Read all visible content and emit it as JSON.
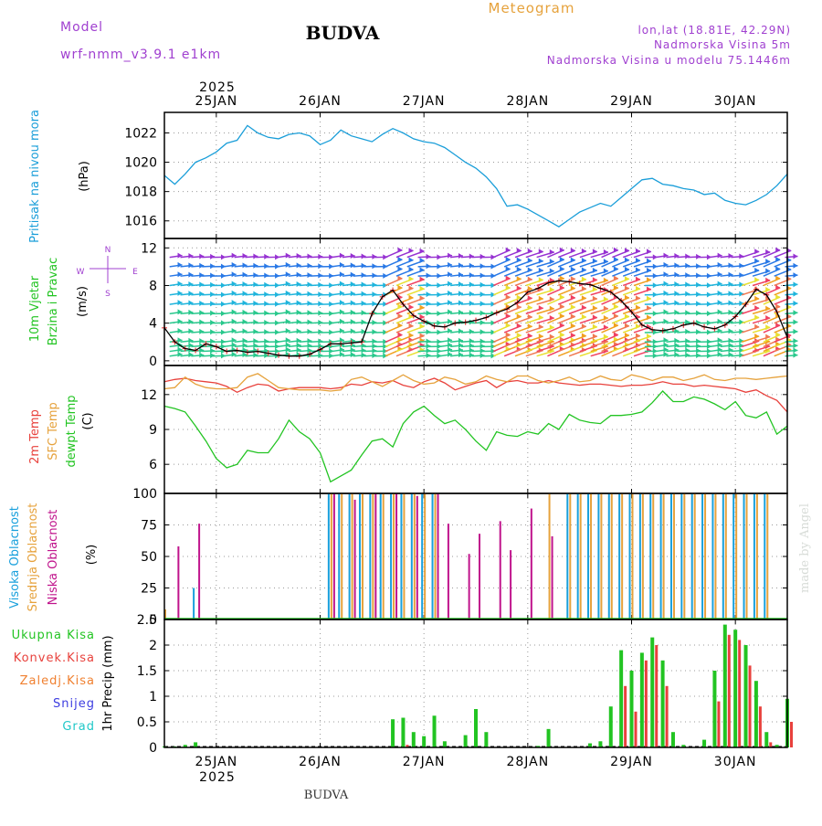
{
  "header": {
    "model_label": "Model",
    "model_name": "wrf-nmm_v3.9.1  e1km",
    "station": "BUDVA",
    "product": "Meteogram",
    "lonlat": "lon,lat (18.81E, 42.29N)",
    "elevation": "Nadmorska Visina 5m",
    "model_elevation": "Nadmorska Visina u modelu 75.1446m",
    "year_top": "2025",
    "year_bottom": "2025",
    "footer_station": "BUDVA",
    "credit": "made by Angel"
  },
  "colors": {
    "pressure": "#1a9ed9",
    "wind_speed": "#000000",
    "wind_markers": "#e83a3a",
    "t2m": "#e8413c",
    "tsfc": "#e6a23c",
    "dewpt": "#22c422",
    "high_cloud": "#19a0dc",
    "mid_cloud": "#e6a23c",
    "low_cloud": "#c0148c",
    "total_precip": "#22c422",
    "conv_precip": "#e8413c",
    "frozen_precip": "#f08030",
    "snow": "#3c3ce0",
    "hail": "#20c8c8",
    "model_purple": "#a040d0",
    "title_black": "#000000"
  },
  "chart_data": [
    {
      "type": "line",
      "id": "pressure",
      "ylabel_lines": [
        "Pritisak na nivou mora",
        "(hPa)"
      ],
      "ylim": [
        1014.8,
        1023.4
      ],
      "yticks": [
        1016,
        1018,
        1020,
        1022
      ],
      "grid": true,
      "x_days": [
        0,
        0.1,
        0.2,
        0.3,
        0.4,
        0.5,
        0.6,
        0.7,
        0.8,
        0.9,
        1.0,
        1.1,
        1.2,
        1.3,
        1.4,
        1.5,
        1.6,
        1.7,
        1.8,
        1.9,
        2.0,
        2.1,
        2.2,
        2.3,
        2.4,
        2.5,
        2.6,
        2.7,
        2.8,
        2.9,
        3.0,
        3.1,
        3.2,
        3.3,
        3.4,
        3.5,
        3.6,
        3.7,
        3.8,
        3.9,
        4.0,
        4.1,
        4.2,
        4.3,
        4.4,
        4.5,
        4.6,
        4.7,
        4.8,
        4.9,
        5.0,
        5.1,
        5.2,
        5.3,
        5.4,
        5.5,
        5.6,
        5.7,
        5.8,
        5.9,
        6.0
      ],
      "series": [
        {
          "key": "pressure",
          "values": [
            1019.1,
            1018.5,
            1019.2,
            1020.0,
            1020.3,
            1020.7,
            1021.3,
            1021.5,
            1022.5,
            1022.0,
            1021.7,
            1021.6,
            1021.9,
            1022.0,
            1021.8,
            1021.2,
            1021.5,
            1022.2,
            1021.8,
            1021.6,
            1021.4,
            1021.9,
            1022.3,
            1022.0,
            1021.6,
            1021.4,
            1021.3,
            1021.0,
            1020.5,
            1020.0,
            1019.6,
            1019.0,
            1018.2,
            1017.0,
            1017.1,
            1016.8,
            1016.4,
            1016.0,
            1015.6,
            1016.1,
            1016.6,
            1016.9,
            1017.2,
            1017.0,
            1017.6,
            1018.2,
            1018.8,
            1018.9,
            1018.5,
            1018.4,
            1018.2,
            1018.1,
            1017.8,
            1017.9,
            1017.4,
            1017.2,
            1017.1,
            1017.4,
            1017.8,
            1018.4,
            1019.2
          ]
        }
      ]
    },
    {
      "type": "line",
      "id": "wind",
      "ylabel_lines": [
        "10m Vjetar",
        "Brzina i Pravac",
        "(m/s)"
      ],
      "direction_legend": "N, E, S, W",
      "ylim": [
        -0.5,
        13
      ],
      "yticks": [
        0,
        4,
        8,
        12
      ],
      "grid": true,
      "x_days": [
        0,
        0.1,
        0.2,
        0.3,
        0.4,
        0.5,
        0.6,
        0.7,
        0.8,
        0.9,
        1.0,
        1.1,
        1.2,
        1.3,
        1.4,
        1.5,
        1.6,
        1.7,
        1.8,
        1.9,
        2.0,
        2.1,
        2.2,
        2.3,
        2.4,
        2.5,
        2.6,
        2.7,
        2.8,
        2.9,
        3.0,
        3.1,
        3.2,
        3.3,
        3.4,
        3.5,
        3.6,
        3.7,
        3.8,
        3.9,
        4.0,
        4.1,
        4.2,
        4.3,
        4.4,
        4.5,
        4.6,
        4.7,
        4.8,
        4.9,
        5.0,
        5.1,
        5.2,
        5.3,
        5.4,
        5.5,
        5.6,
        5.7,
        5.8,
        5.9,
        6.0
      ],
      "series": [
        {
          "key": "wind_speed",
          "values": [
            3.5,
            2.0,
            1.3,
            1.1,
            1.8,
            1.5,
            1.0,
            1.1,
            0.9,
            1.0,
            0.8,
            0.6,
            0.5,
            0.5,
            0.7,
            1.2,
            1.8,
            1.8,
            1.9,
            2.0,
            5.0,
            6.8,
            7.5,
            6.0,
            4.8,
            4.2,
            3.7,
            3.6,
            4.0,
            4.1,
            4.3,
            4.6,
            5.1,
            5.5,
            6.2,
            7.3,
            7.7,
            8.3,
            8.5,
            8.4,
            8.2,
            8.1,
            7.7,
            7.3,
            6.4,
            5.2,
            3.8,
            3.3,
            3.2,
            3.4,
            3.8,
            4.0,
            3.6,
            3.4,
            3.8,
            4.7,
            6.0,
            7.6,
            7.0,
            5.2,
            2.5
          ]
        }
      ],
      "arrow_rows": [
        0.5,
        1.0,
        1.5,
        2.0,
        3.0,
        4.0,
        5.0,
        6.0,
        7.0,
        8.0,
        9.0,
        10.0,
        11.0
      ]
    },
    {
      "type": "line",
      "id": "temperature",
      "ylabel_lines": [
        "2m Temp",
        "SFC Temp",
        "dewpt Temp",
        "(C)"
      ],
      "ylim": [
        3.5,
        14.5
      ],
      "yticks": [
        6,
        9,
        12
      ],
      "grid": true,
      "x_days": [
        0,
        0.1,
        0.2,
        0.3,
        0.4,
        0.5,
        0.6,
        0.7,
        0.8,
        0.9,
        1.0,
        1.1,
        1.2,
        1.3,
        1.4,
        1.5,
        1.6,
        1.7,
        1.8,
        1.9,
        2.0,
        2.1,
        2.2,
        2.3,
        2.4,
        2.5,
        2.6,
        2.7,
        2.8,
        2.9,
        3.0,
        3.1,
        3.2,
        3.3,
        3.4,
        3.5,
        3.6,
        3.7,
        3.8,
        3.9,
        4.0,
        4.1,
        4.2,
        4.3,
        4.4,
        4.5,
        4.6,
        4.7,
        4.8,
        4.9,
        5.0,
        5.1,
        5.2,
        5.3,
        5.4,
        5.5,
        5.6,
        5.7,
        5.8,
        5.9,
        6.0
      ],
      "series": [
        {
          "key": "t2m",
          "values": [
            13.1,
            13.3,
            13.4,
            13.2,
            13.1,
            13.0,
            12.7,
            12.2,
            12.6,
            12.9,
            12.8,
            12.3,
            12.5,
            12.6,
            12.6,
            12.6,
            12.5,
            12.6,
            12.9,
            12.8,
            13.1,
            13.0,
            13.2,
            12.8,
            12.6,
            13.1,
            13.4,
            13.0,
            12.4,
            12.7,
            13.0,
            13.2,
            12.6,
            13.1,
            13.2,
            13.0,
            13.0,
            13.2,
            13.0,
            12.9,
            12.8,
            12.9,
            12.9,
            12.8,
            12.7,
            12.8,
            12.8,
            12.9,
            13.1,
            12.9,
            12.9,
            12.7,
            12.8,
            12.7,
            12.6,
            12.5,
            12.2,
            12.4,
            11.9,
            11.5,
            10.5
          ]
        },
        {
          "key": "tsfc",
          "values": [
            12.5,
            12.6,
            13.5,
            12.9,
            12.6,
            12.5,
            12.5,
            12.6,
            13.5,
            13.8,
            13.2,
            12.6,
            12.5,
            12.4,
            12.4,
            12.4,
            12.3,
            12.4,
            13.3,
            13.5,
            13.1,
            12.7,
            13.2,
            13.7,
            13.2,
            12.9,
            13.0,
            13.5,
            13.3,
            12.9,
            13.1,
            13.6,
            13.3,
            13.1,
            13.6,
            13.6,
            13.2,
            13.0,
            13.2,
            13.5,
            13.1,
            13.2,
            13.6,
            13.3,
            13.2,
            13.7,
            13.5,
            13.2,
            13.5,
            13.5,
            13.2,
            13.4,
            13.7,
            13.3,
            13.2,
            13.4,
            13.4,
            13.3,
            13.4,
            13.5,
            13.6
          ]
        },
        {
          "key": "dewpt",
          "values": [
            11.0,
            10.8,
            10.5,
            9.3,
            8.0,
            6.5,
            5.7,
            6.0,
            7.2,
            7.0,
            7.0,
            8.2,
            9.8,
            8.8,
            8.2,
            7.0,
            4.5,
            5.0,
            5.5,
            6.8,
            8.0,
            8.2,
            7.5,
            9.5,
            10.5,
            11.0,
            10.2,
            9.5,
            9.8,
            9.0,
            8.0,
            7.2,
            8.8,
            8.5,
            8.4,
            8.8,
            8.6,
            9.5,
            9.0,
            10.3,
            9.8,
            9.6,
            9.5,
            10.2,
            10.2,
            10.3,
            10.5,
            11.3,
            12.3,
            11.4,
            11.4,
            11.8,
            11.6,
            11.2,
            10.7,
            11.4,
            10.2,
            10.0,
            10.5,
            8.6,
            9.3
          ]
        }
      ]
    },
    {
      "type": "bar",
      "id": "clouds",
      "ylabel_lines": [
        "Visoka Oblacnost",
        "Srednja Oblacnost",
        "Niska Oblacnost",
        "(%)"
      ],
      "ylim": [
        0,
        100
      ],
      "yticks": [
        0,
        25,
        50,
        75,
        100
      ],
      "grid": true,
      "x_days": [
        0,
        0.1,
        0.2,
        0.3,
        0.4,
        0.5,
        0.6,
        0.7,
        0.8,
        0.9,
        1.0,
        1.1,
        1.2,
        1.3,
        1.4,
        1.5,
        1.6,
        1.7,
        1.8,
        1.9,
        2.0,
        2.1,
        2.2,
        2.3,
        2.4,
        2.5,
        2.6,
        2.7,
        2.8,
        2.9,
        3.0,
        3.1,
        3.2,
        3.3,
        3.4,
        3.5,
        3.6,
        3.7,
        3.8,
        3.9,
        4.0,
        4.1,
        4.2,
        4.3,
        4.4,
        4.5,
        4.6,
        4.7,
        4.8,
        4.9,
        5.0,
        5.1,
        5.2,
        5.3,
        5.4,
        5.5,
        5.6,
        5.7,
        5.8,
        5.9,
        6.0
      ],
      "series": [
        {
          "key": "high_cloud",
          "values": [
            0,
            0,
            0,
            25,
            0,
            0,
            0,
            0,
            0,
            0,
            0,
            0,
            0,
            0,
            0,
            0,
            100,
            100,
            100,
            100,
            100,
            100,
            100,
            100,
            100,
            100,
            100,
            0,
            0,
            0,
            0,
            0,
            0,
            0,
            0,
            0,
            0,
            0,
            0,
            100,
            100,
            100,
            100,
            100,
            100,
            100,
            100,
            100,
            100,
            100,
            100,
            100,
            100,
            100,
            100,
            100,
            100,
            100,
            100,
            0,
            0
          ]
        },
        {
          "key": "mid_cloud",
          "values": [
            8,
            0,
            0,
            0,
            0,
            0,
            0,
            0,
            0,
            0,
            0,
            0,
            0,
            0,
            0,
            0,
            100,
            100,
            100,
            100,
            100,
            100,
            100,
            100,
            100,
            100,
            100,
            0,
            0,
            0,
            0,
            0,
            0,
            0,
            0,
            0,
            0,
            100,
            0,
            100,
            100,
            100,
            100,
            100,
            100,
            100,
            100,
            100,
            100,
            100,
            100,
            100,
            100,
            100,
            100,
            100,
            100,
            100,
            100,
            0,
            0
          ]
        },
        {
          "key": "low_cloud",
          "values": [
            0,
            58,
            0,
            76,
            0,
            0,
            0,
            0,
            0,
            0,
            0,
            0,
            0,
            0,
            0,
            0,
            100,
            0,
            95,
            0,
            100,
            0,
            100,
            0,
            98,
            0,
            100,
            76,
            0,
            52,
            68,
            0,
            78,
            55,
            0,
            88,
            0,
            66,
            0,
            0,
            0,
            0,
            0,
            0,
            0,
            0,
            0,
            0,
            0,
            0,
            0,
            0,
            0,
            0,
            0,
            0,
            0,
            0,
            0,
            0,
            0
          ]
        }
      ]
    },
    {
      "type": "bar",
      "id": "precip",
      "ylabel_lines": [
        "1hr Precip (mm)"
      ],
      "legend": [
        "Ukupna Kisa",
        "Konvek.Kisa",
        "Zaledj.Kisa",
        "Snijeg",
        "Grad"
      ],
      "ylim": [
        0,
        2.5
      ],
      "yticks": [
        0,
        0.5,
        1,
        1.5,
        2,
        2.5
      ],
      "ytick_labels": [
        "0",
        "0.5",
        "1",
        "1.5",
        "2",
        "2.5"
      ],
      "grid": true,
      "x_days": [
        0,
        0.1,
        0.2,
        0.3,
        0.4,
        0.5,
        0.6,
        0.7,
        0.8,
        0.9,
        1.0,
        1.1,
        1.2,
        1.3,
        1.4,
        1.5,
        1.6,
        1.7,
        1.8,
        1.9,
        2.0,
        2.1,
        2.2,
        2.3,
        2.4,
        2.5,
        2.6,
        2.7,
        2.8,
        2.9,
        3.0,
        3.1,
        3.2,
        3.3,
        3.4,
        3.5,
        3.6,
        3.7,
        3.8,
        3.9,
        4.0,
        4.1,
        4.2,
        4.3,
        4.4,
        4.5,
        4.6,
        4.7,
        4.8,
        4.9,
        5.0,
        5.1,
        5.2,
        5.3,
        5.4,
        5.5,
        5.6,
        5.7,
        5.8,
        5.9,
        6.0
      ],
      "series": [
        {
          "key": "total_precip",
          "values": [
            0.02,
            0.02,
            0.05,
            0.1,
            0,
            0,
            0,
            0,
            0,
            0,
            0,
            0,
            0,
            0,
            0,
            0,
            0,
            0,
            0,
            0,
            0,
            0,
            0.55,
            0.58,
            0.3,
            0.22,
            0.62,
            0.12,
            0,
            0.24,
            0.75,
            0.3,
            0,
            0,
            0,
            0,
            0.03,
            0.36,
            0,
            0,
            0,
            0.08,
            0.12,
            0.8,
            1.9,
            1.5,
            1.85,
            2.15,
            1.7,
            0.3,
            0.05,
            0,
            0.15,
            1.5,
            2.4,
            2.3,
            2.0,
            1.3,
            0.3,
            0.05,
            0.95
          ]
        },
        {
          "key": "conv_precip",
          "values": [
            0,
            0,
            0,
            0,
            0,
            0,
            0,
            0,
            0,
            0,
            0,
            0,
            0,
            0,
            0,
            0,
            0,
            0,
            0,
            0,
            0,
            0,
            0,
            0.05,
            0,
            0,
            0,
            0,
            0,
            0,
            0,
            0,
            0,
            0,
            0,
            0,
            0,
            0,
            0,
            0,
            0,
            0,
            0,
            0,
            1.2,
            0.7,
            1.7,
            2.0,
            1.2,
            0,
            0,
            0,
            0,
            0.9,
            2.2,
            2.1,
            1.6,
            0.8,
            0.1,
            0,
            0.5
          ]
        }
      ]
    }
  ],
  "x_axis": {
    "day_ticks": [
      {
        "day": 0.5,
        "label": "25JAN"
      },
      {
        "day": 1.5,
        "label": "26JAN"
      },
      {
        "day": 2.5,
        "label": "27JAN"
      },
      {
        "day": 3.5,
        "label": "28JAN"
      },
      {
        "day": 4.5,
        "label": "29JAN"
      },
      {
        "day": 5.5,
        "label": "30JAN"
      }
    ],
    "range": [
      0,
      6
    ]
  }
}
